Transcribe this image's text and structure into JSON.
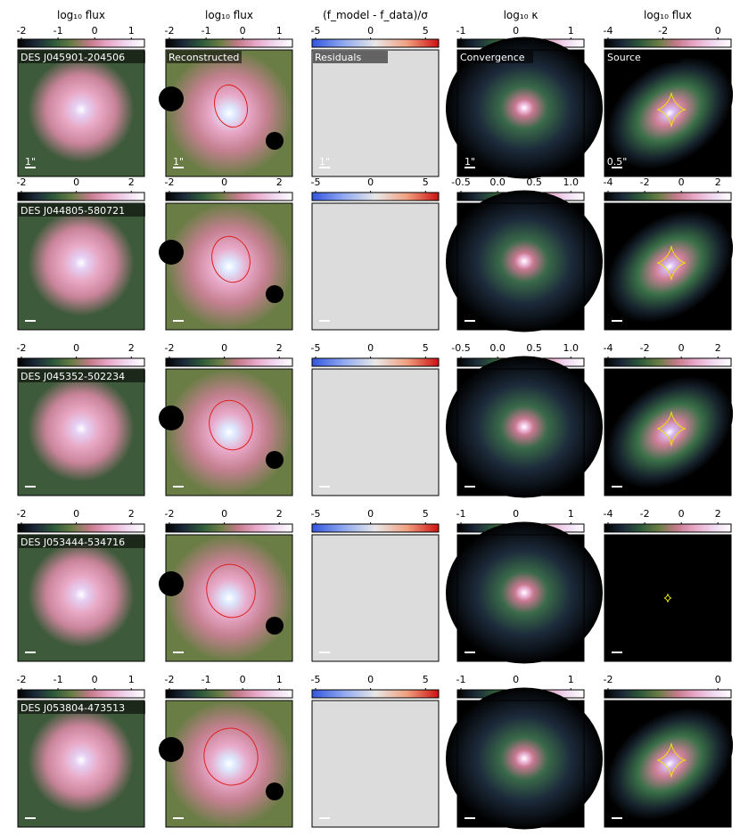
{
  "figure": {
    "column_headers": [
      "log₁₀ flux",
      "log₁₀ flux",
      "(f_model - f_data)/σ",
      "log₁₀ κ",
      "log₁₀ flux"
    ],
    "panel_labels": [
      "",
      "Reconstructed",
      "Residuals",
      "Convergence",
      "Source"
    ],
    "scale_labels_first_row": [
      "1\"",
      "1\"",
      "1\"",
      "1\"",
      "0.5\""
    ],
    "rows": [
      {
        "object": "DES J045901-204506",
        "colorbar_ticks": [
          [
            "-2",
            "-1",
            "0",
            "1"
          ],
          [
            "-2",
            "-1",
            "0",
            "1"
          ],
          [
            "-5",
            "0",
            "5"
          ],
          [
            "-1",
            "0",
            "1"
          ],
          [
            "-4",
            "-2",
            "0"
          ]
        ]
      },
      {
        "object": "DES J044805-580721",
        "colorbar_ticks": [
          [
            "-2",
            "0",
            "2"
          ],
          [
            "-2",
            "0",
            "2"
          ],
          [
            "-5",
            "0",
            "5"
          ],
          [
            "-0.5",
            "0.0",
            "0.5",
            "1.0"
          ],
          [
            "-4",
            "-2",
            "0",
            "2"
          ]
        ]
      },
      {
        "object": "DES J045352-502234",
        "colorbar_ticks": [
          [
            "-2",
            "0",
            "2"
          ],
          [
            "-2",
            "0",
            "2"
          ],
          [
            "-5",
            "0",
            "5"
          ],
          [
            "-0.5",
            "0.0",
            "0.5",
            "1.0"
          ],
          [
            "-4",
            "-2",
            "0",
            "2"
          ]
        ]
      },
      {
        "object": "DES J053444-534716",
        "colorbar_ticks": [
          [
            "-2",
            "0",
            "2"
          ],
          [
            "-2",
            "0",
            "2"
          ],
          [
            "-5",
            "0",
            "5"
          ],
          [
            "-1",
            "0",
            "1"
          ],
          [
            "-4",
            "-2",
            "0",
            "2"
          ]
        ]
      },
      {
        "object": "DES J053804-473513",
        "colorbar_ticks": [
          [
            "-2",
            "-1",
            "0",
            "1"
          ],
          [
            "-2",
            "-1",
            "0",
            "1"
          ],
          [
            "-5",
            "0",
            "5"
          ],
          [
            "-1",
            "0",
            "1"
          ],
          [
            "-2",
            "0"
          ]
        ]
      }
    ],
    "colors": {
      "flux_colormap": [
        "#000000",
        "#1c2a3a",
        "#2e5a3a",
        "#6a7d45",
        "#c47a8a",
        "#e8a8c8",
        "#f0d8f0",
        "#ffffff"
      ],
      "residual_colormap": [
        "#3355dd",
        "#8fa8f0",
        "#e8e8e8",
        "#f0a080",
        "#cc1111"
      ],
      "critical_curve": "#dd2222",
      "caustic": "#e8e800",
      "masked": "#000000"
    }
  }
}
